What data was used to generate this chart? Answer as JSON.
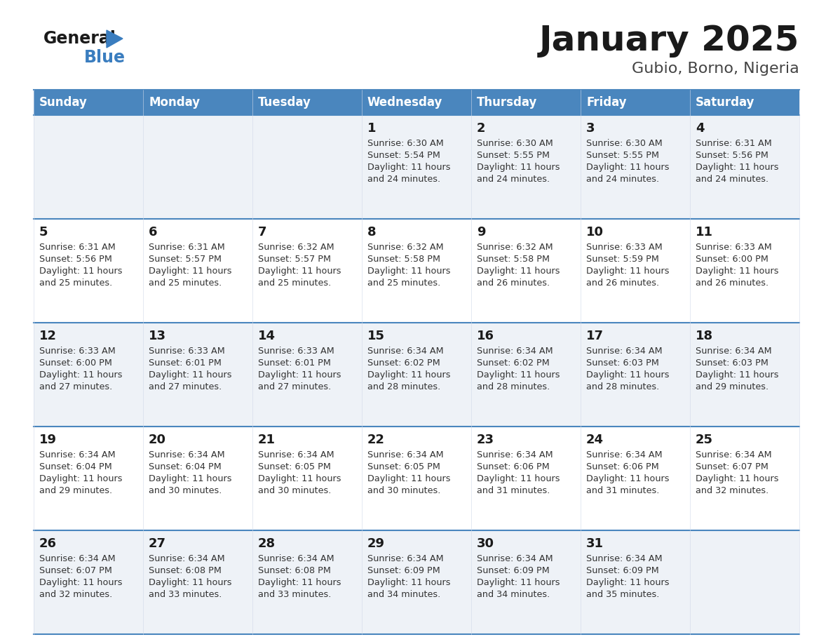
{
  "title": "January 2025",
  "subtitle": "Gubio, Borno, Nigeria",
  "header_bg": "#4a86be",
  "header_text": "#ffffff",
  "row_bg_light": "#eef2f7",
  "row_bg_white": "#ffffff",
  "cell_border_color": "#4a86be",
  "cell_border_thin": "#b0c4de",
  "day_headers": [
    "Sunday",
    "Monday",
    "Tuesday",
    "Wednesday",
    "Thursday",
    "Friday",
    "Saturday"
  ],
  "title_color": "#1a1a1a",
  "subtitle_color": "#444444",
  "day_number_color": "#1a1a1a",
  "info_color": "#333333",
  "logo_general_color": "#1a1a1a",
  "logo_blue_color": "#3a7dbf",
  "calendar": [
    [
      null,
      null,
      null,
      {
        "day": 1,
        "sunrise": "6:30 AM",
        "sunset": "5:54 PM",
        "daylight": "11 hours",
        "daylight2": "and 24 minutes."
      },
      {
        "day": 2,
        "sunrise": "6:30 AM",
        "sunset": "5:55 PM",
        "daylight": "11 hours",
        "daylight2": "and 24 minutes."
      },
      {
        "day": 3,
        "sunrise": "6:30 AM",
        "sunset": "5:55 PM",
        "daylight": "11 hours",
        "daylight2": "and 24 minutes."
      },
      {
        "day": 4,
        "sunrise": "6:31 AM",
        "sunset": "5:56 PM",
        "daylight": "11 hours",
        "daylight2": "and 24 minutes."
      }
    ],
    [
      {
        "day": 5,
        "sunrise": "6:31 AM",
        "sunset": "5:56 PM",
        "daylight": "11 hours",
        "daylight2": "and 25 minutes."
      },
      {
        "day": 6,
        "sunrise": "6:31 AM",
        "sunset": "5:57 PM",
        "daylight": "11 hours",
        "daylight2": "and 25 minutes."
      },
      {
        "day": 7,
        "sunrise": "6:32 AM",
        "sunset": "5:57 PM",
        "daylight": "11 hours",
        "daylight2": "and 25 minutes."
      },
      {
        "day": 8,
        "sunrise": "6:32 AM",
        "sunset": "5:58 PM",
        "daylight": "11 hours",
        "daylight2": "and 25 minutes."
      },
      {
        "day": 9,
        "sunrise": "6:32 AM",
        "sunset": "5:58 PM",
        "daylight": "11 hours",
        "daylight2": "and 26 minutes."
      },
      {
        "day": 10,
        "sunrise": "6:33 AM",
        "sunset": "5:59 PM",
        "daylight": "11 hours",
        "daylight2": "and 26 minutes."
      },
      {
        "day": 11,
        "sunrise": "6:33 AM",
        "sunset": "6:00 PM",
        "daylight": "11 hours",
        "daylight2": "and 26 minutes."
      }
    ],
    [
      {
        "day": 12,
        "sunrise": "6:33 AM",
        "sunset": "6:00 PM",
        "daylight": "11 hours",
        "daylight2": "and 27 minutes."
      },
      {
        "day": 13,
        "sunrise": "6:33 AM",
        "sunset": "6:01 PM",
        "daylight": "11 hours",
        "daylight2": "and 27 minutes."
      },
      {
        "day": 14,
        "sunrise": "6:33 AM",
        "sunset": "6:01 PM",
        "daylight": "11 hours",
        "daylight2": "and 27 minutes."
      },
      {
        "day": 15,
        "sunrise": "6:34 AM",
        "sunset": "6:02 PM",
        "daylight": "11 hours",
        "daylight2": "and 28 minutes."
      },
      {
        "day": 16,
        "sunrise": "6:34 AM",
        "sunset": "6:02 PM",
        "daylight": "11 hours",
        "daylight2": "and 28 minutes."
      },
      {
        "day": 17,
        "sunrise": "6:34 AM",
        "sunset": "6:03 PM",
        "daylight": "11 hours",
        "daylight2": "and 28 minutes."
      },
      {
        "day": 18,
        "sunrise": "6:34 AM",
        "sunset": "6:03 PM",
        "daylight": "11 hours",
        "daylight2": "and 29 minutes."
      }
    ],
    [
      {
        "day": 19,
        "sunrise": "6:34 AM",
        "sunset": "6:04 PM",
        "daylight": "11 hours",
        "daylight2": "and 29 minutes."
      },
      {
        "day": 20,
        "sunrise": "6:34 AM",
        "sunset": "6:04 PM",
        "daylight": "11 hours",
        "daylight2": "and 30 minutes."
      },
      {
        "day": 21,
        "sunrise": "6:34 AM",
        "sunset": "6:05 PM",
        "daylight": "11 hours",
        "daylight2": "and 30 minutes."
      },
      {
        "day": 22,
        "sunrise": "6:34 AM",
        "sunset": "6:05 PM",
        "daylight": "11 hours",
        "daylight2": "and 30 minutes."
      },
      {
        "day": 23,
        "sunrise": "6:34 AM",
        "sunset": "6:06 PM",
        "daylight": "11 hours",
        "daylight2": "and 31 minutes."
      },
      {
        "day": 24,
        "sunrise": "6:34 AM",
        "sunset": "6:06 PM",
        "daylight": "11 hours",
        "daylight2": "and 31 minutes."
      },
      {
        "day": 25,
        "sunrise": "6:34 AM",
        "sunset": "6:07 PM",
        "daylight": "11 hours",
        "daylight2": "and 32 minutes."
      }
    ],
    [
      {
        "day": 26,
        "sunrise": "6:34 AM",
        "sunset": "6:07 PM",
        "daylight": "11 hours",
        "daylight2": "and 32 minutes."
      },
      {
        "day": 27,
        "sunrise": "6:34 AM",
        "sunset": "6:08 PM",
        "daylight": "11 hours",
        "daylight2": "and 33 minutes."
      },
      {
        "day": 28,
        "sunrise": "6:34 AM",
        "sunset": "6:08 PM",
        "daylight": "11 hours",
        "daylight2": "and 33 minutes."
      },
      {
        "day": 29,
        "sunrise": "6:34 AM",
        "sunset": "6:09 PM",
        "daylight": "11 hours",
        "daylight2": "and 34 minutes."
      },
      {
        "day": 30,
        "sunrise": "6:34 AM",
        "sunset": "6:09 PM",
        "daylight": "11 hours",
        "daylight2": "and 34 minutes."
      },
      {
        "day": 31,
        "sunrise": "6:34 AM",
        "sunset": "6:09 PM",
        "daylight": "11 hours",
        "daylight2": "and 35 minutes."
      },
      null
    ]
  ]
}
